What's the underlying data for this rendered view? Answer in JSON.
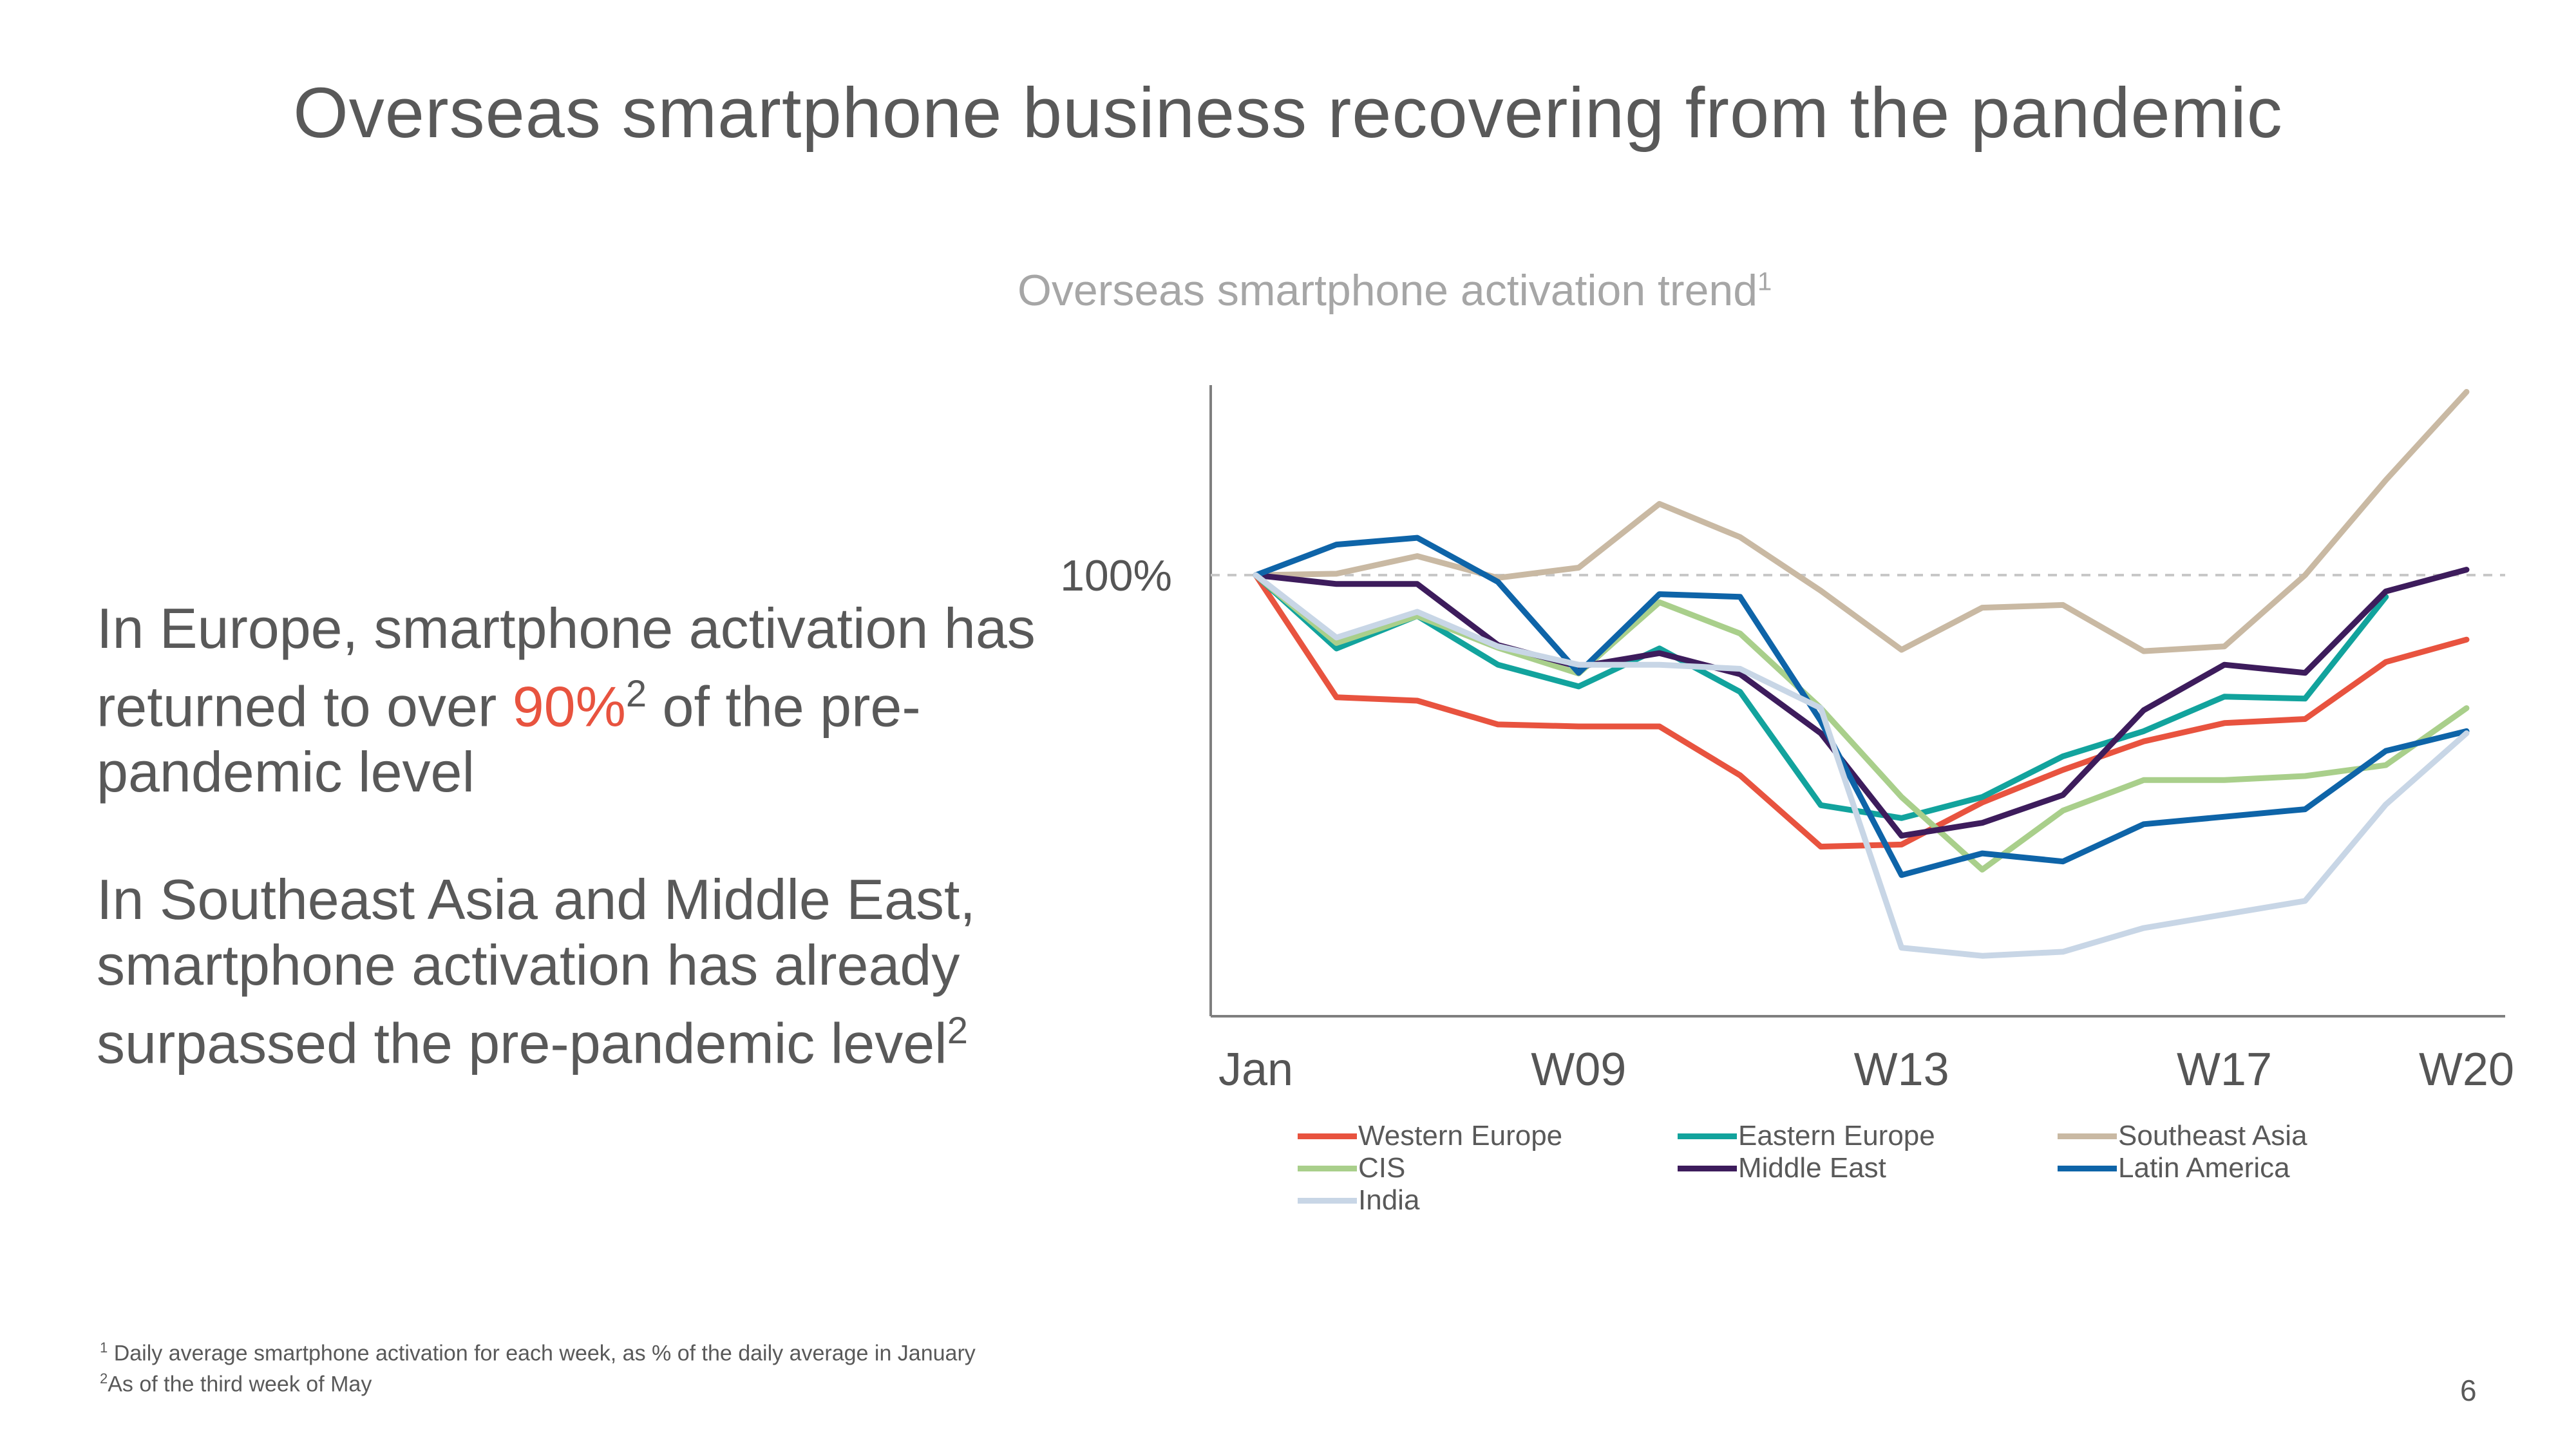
{
  "slide": {
    "title": "Overseas smartphone business recovering from the pandemic",
    "page_number": "6"
  },
  "text": {
    "point1_pre": "In Europe, smartphone activation has returned to over ",
    "point1_highlight": "90%",
    "point1_sup": "2",
    "point1_post": " of the pre-pandemic level",
    "point2_main": "In Southeast Asia and Middle East, smartphone activation has already surpassed the pre-pandemic level",
    "point2_sup": "2",
    "highlight_color": "#e8533f"
  },
  "footnotes": {
    "note1_marker": "1",
    "note1": " Daily average smartphone activation for each week, as % of the daily average in January",
    "note2_marker": "2",
    "note2": "As of the third week of May"
  },
  "chart_data": {
    "type": "line",
    "title": "Overseas smartphone activation trend",
    "title_sup": "1",
    "x_count": 16,
    "x_ticks": [
      {
        "index": 0,
        "label": "Jan"
      },
      {
        "index": 4,
        "label": "W09"
      },
      {
        "index": 8,
        "label": "W13"
      },
      {
        "index": 12,
        "label": "W17"
      },
      {
        "index": 15,
        "label": "W20"
      }
    ],
    "y_reference": {
      "value": 100,
      "label": "100%",
      "style": "dashed"
    },
    "ylim": [
      35,
      128
    ],
    "legend_position": "bottom",
    "series": [
      {
        "name": "Western Europe",
        "color": "#e8533f",
        "values": [
          100,
          82,
          81.5,
          78,
          77.7,
          77.7,
          70.5,
          60,
          60.3,
          66.5,
          71.3,
          75.5,
          78.2,
          78.8,
          87.2,
          90.5
        ]
      },
      {
        "name": "Eastern Europe",
        "color": "#12a39d",
        "values": [
          100,
          89.2,
          94,
          86.8,
          83.6,
          89.2,
          82.8,
          66.1,
          64.2,
          67.3,
          73.3,
          77,
          82.1,
          81.8,
          96.8,
          null
        ]
      },
      {
        "name": "Southeast Asia",
        "color": "#c9b9a3",
        "values": [
          100,
          100.2,
          102.8,
          99.6,
          101.1,
          110.5,
          105.6,
          97.7,
          89,
          95.2,
          95.6,
          88.8,
          89.5,
          100,
          114,
          127
        ]
      },
      {
        "name": "CIS",
        "color": "#a9cf8b",
        "values": [
          100,
          90,
          94,
          89.3,
          85.5,
          96,
          91.4,
          80.4,
          67.3,
          56.6,
          65.3,
          69.8,
          69.8,
          70.4,
          72,
          80.4
        ]
      },
      {
        "name": "Middle East",
        "color": "#3d1c5c",
        "values": [
          100,
          98.7,
          98.7,
          89.7,
          86.5,
          88.5,
          85.4,
          76.7,
          61.6,
          63.5,
          67.6,
          80.1,
          86.8,
          85.6,
          97.6,
          100.8
        ]
      },
      {
        "name": "Latin America",
        "color": "#0e64a8",
        "values": [
          100,
          104.5,
          105.5,
          99,
          85.6,
          97.2,
          96.8,
          78.5,
          55.8,
          59,
          57.8,
          63.3,
          64.4,
          65.5,
          74.1,
          77
        ]
      },
      {
        "name": "India",
        "color": "#c8d6e6",
        "values": [
          100,
          90.8,
          94.6,
          89.5,
          86.8,
          86.8,
          86.2,
          80.4,
          45.1,
          43.9,
          44.5,
          48,
          50,
          52,
          66.2,
          76.7
        ]
      }
    ]
  }
}
